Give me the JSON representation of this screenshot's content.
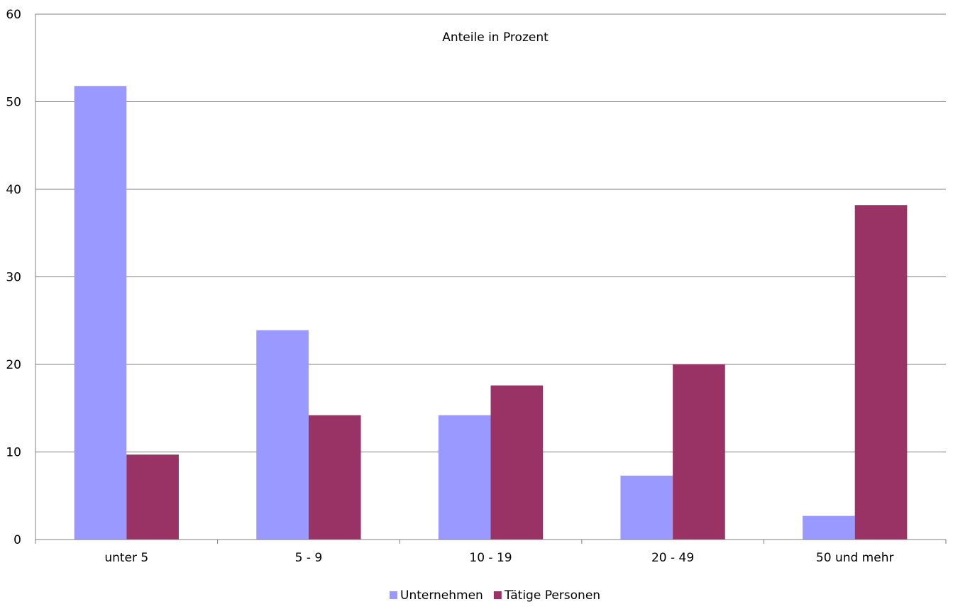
{
  "chart_data": {
    "type": "bar",
    "title": "Anteile in Prozent",
    "xlabel": "",
    "ylabel": "",
    "categories": [
      "unter 5",
      "5 - 9",
      "10 - 19",
      "20 - 49",
      "50 und mehr"
    ],
    "series": [
      {
        "name": "Unternehmen",
        "color": "#9999ff",
        "values": [
          51.8,
          23.9,
          14.2,
          7.3,
          2.7
        ]
      },
      {
        "name": "Tätige Personen",
        "color": "#993366",
        "values": [
          9.7,
          14.2,
          17.6,
          20.0,
          38.2
        ]
      }
    ],
    "ylim": [
      0,
      60
    ],
    "yticks": [
      0,
      10,
      20,
      30,
      40,
      50,
      60
    ],
    "grid": true,
    "legend_position": "bottom"
  }
}
